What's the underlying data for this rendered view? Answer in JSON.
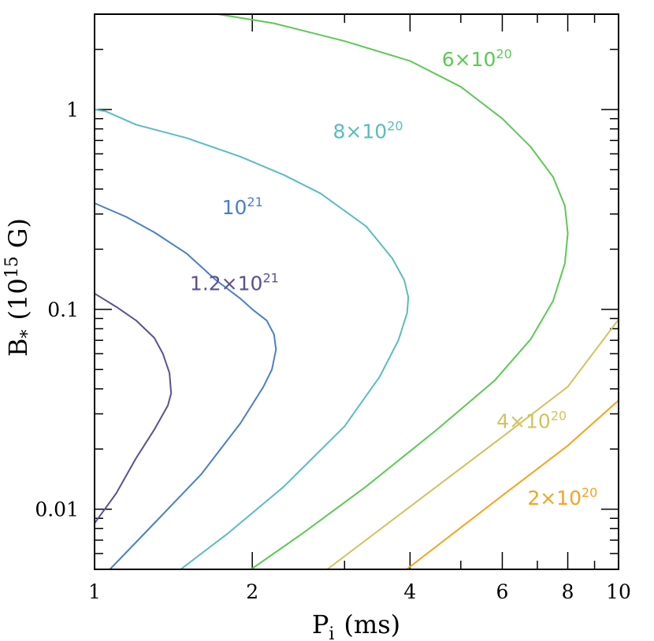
{
  "chart_data": {
    "type": "line",
    "title": "",
    "xlabel": {
      "main": "P",
      "sub": "i",
      "unit": "(ms)"
    },
    "ylabel": {
      "main": "B",
      "sub": "*",
      "unit_pre": "(10",
      "unit_exp": "15",
      "unit_post": " G)"
    },
    "xscale": "log",
    "yscale": "log",
    "xlim": [
      1,
      10
    ],
    "ylim": [
      0.005,
      3
    ],
    "xtick_labels": [
      {
        "value": 1,
        "label": "1"
      },
      {
        "value": 2,
        "label": "2"
      },
      {
        "value": 4,
        "label": "4"
      },
      {
        "value": 6,
        "label": "6"
      },
      {
        "value": 8,
        "label": "8"
      },
      {
        "value": 10,
        "label": "10"
      }
    ],
    "ytick_labels": [
      {
        "value": 0.01,
        "label": "0.01"
      },
      {
        "value": 0.1,
        "label": "0.1"
      },
      {
        "value": 1,
        "label": "1"
      }
    ],
    "grid": false,
    "series": [
      {
        "label_mant": "1.2×10",
        "label_exp": "21",
        "label_at": [
          1.52,
          0.125
        ],
        "color": "#5d5091",
        "points": [
          [
            1.0,
            0.0085
          ],
          [
            1.1,
            0.012
          ],
          [
            1.2,
            0.018
          ],
          [
            1.3,
            0.025
          ],
          [
            1.38,
            0.033
          ],
          [
            1.4,
            0.038
          ],
          [
            1.39,
            0.048
          ],
          [
            1.35,
            0.06
          ],
          [
            1.3,
            0.072
          ],
          [
            1.2,
            0.088
          ],
          [
            1.1,
            0.103
          ],
          [
            1.0,
            0.12
          ]
        ]
      },
      {
        "label_mant": "10",
        "label_exp": "21",
        "label_at": [
          1.75,
          0.3
        ],
        "color": "#4a7fc9",
        "points": [
          [
            1.07,
            0.005
          ],
          [
            1.3,
            0.0085
          ],
          [
            1.6,
            0.015
          ],
          [
            1.9,
            0.027
          ],
          [
            2.1,
            0.041
          ],
          [
            2.18,
            0.05
          ],
          [
            2.22,
            0.063
          ],
          [
            2.2,
            0.075
          ],
          [
            2.13,
            0.088
          ],
          [
            2.0,
            0.1
          ],
          [
            1.9,
            0.113
          ],
          [
            1.7,
            0.141
          ],
          [
            1.5,
            0.19
          ],
          [
            1.3,
            0.243
          ],
          [
            1.15,
            0.29
          ],
          [
            1.0,
            0.34
          ]
        ]
      },
      {
        "label_mant": "8×10",
        "label_exp": "20",
        "label_at": [
          2.85,
          0.72
        ],
        "color": "#59bcc1",
        "points": [
          [
            1.46,
            0.005
          ],
          [
            1.8,
            0.0076
          ],
          [
            2.3,
            0.013
          ],
          [
            3.0,
            0.026
          ],
          [
            3.5,
            0.046
          ],
          [
            3.8,
            0.07
          ],
          [
            3.95,
            0.096
          ],
          [
            3.97,
            0.115
          ],
          [
            3.9,
            0.14
          ],
          [
            3.7,
            0.18
          ],
          [
            3.3,
            0.26
          ],
          [
            2.7,
            0.38
          ],
          [
            2.3,
            0.47
          ],
          [
            1.9,
            0.58
          ],
          [
            1.5,
            0.72
          ],
          [
            1.2,
            0.84
          ],
          [
            1.05,
            0.98
          ],
          [
            1.0,
            1.0
          ]
        ]
      },
      {
        "label_mant": "6×10",
        "label_exp": "20",
        "label_at": [
          4.6,
          1.65
        ],
        "color": "#5cc955",
        "points": [
          [
            1.99,
            0.005
          ],
          [
            2.5,
            0.0076
          ],
          [
            3.3,
            0.013
          ],
          [
            4.5,
            0.025
          ],
          [
            5.8,
            0.044
          ],
          [
            6.8,
            0.071
          ],
          [
            7.5,
            0.11
          ],
          [
            7.9,
            0.17
          ],
          [
            8.0,
            0.24
          ],
          [
            7.9,
            0.33
          ],
          [
            7.5,
            0.46
          ],
          [
            6.8,
            0.65
          ],
          [
            6.0,
            0.9
          ],
          [
            5.0,
            1.3
          ],
          [
            4.0,
            1.75
          ],
          [
            3.0,
            2.2
          ],
          [
            2.2,
            2.7
          ],
          [
            1.72,
            3.0
          ]
        ]
      },
      {
        "label_mant": "4×10",
        "label_exp": "20",
        "label_at": [
          5.85,
          0.0255
        ],
        "color": "#cec45e",
        "points": [
          [
            2.78,
            0.005
          ],
          [
            4.0,
            0.0103
          ],
          [
            6.0,
            0.023
          ],
          [
            8.0,
            0.041
          ],
          [
            10.0,
            0.089
          ]
        ]
      },
      {
        "label_mant": "2×10",
        "label_exp": "20",
        "label_at": [
          6.7,
          0.0105
        ],
        "color": "#f5a31e",
        "points": [
          [
            3.94,
            0.005
          ],
          [
            6.0,
            0.0117
          ],
          [
            8.0,
            0.0208
          ],
          [
            10.0,
            0.035
          ]
        ]
      }
    ]
  }
}
